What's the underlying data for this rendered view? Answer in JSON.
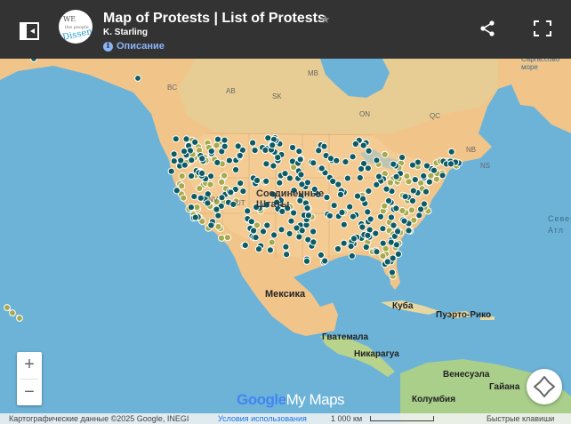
{
  "header": {
    "title": "Map of Protests | List of Protests",
    "author": "K. Starling",
    "description_link": "Описание",
    "logo_text_top": "WE",
    "logo_text_mid": "the people",
    "logo_text_bottom": "Dissent"
  },
  "map_labels": {
    "bc": "BC",
    "ab": "AB",
    "mb": "MB",
    "sk": "SK",
    "on": "ON",
    "qc": "QC",
    "nb": "NB",
    "ns": "NS",
    "nv": "NV",
    "ut": "UT",
    "us": "Соединённые Штаты Америки",
    "mexico": "Мексика",
    "cuba": "Куба",
    "puerto_rico": "Пуэрто-Рико",
    "guatemala": "Гватемала",
    "nicaragua": "Никарагуа",
    "venezuela": "Венесуэла",
    "colombia": "Колумбия",
    "guyana": "Гайана",
    "sargasso": "Саргассово море",
    "north_atlantic": "Север Атл"
  },
  "controls": {
    "zoom_in": "+",
    "zoom_out": "−"
  },
  "branding": {
    "google": "Google",
    "mymaps": "My Maps"
  },
  "footer": {
    "attribution": "Картографические данные ©2025 Google, INEGI",
    "terms": "Условия использования",
    "scale": "1 000 км",
    "shortcuts": "Быстрые клавиши"
  },
  "colors": {
    "marker_teal": "#0d5c63",
    "marker_olive": "#a7a94b",
    "ocean": "#6db3d8",
    "land": "#f1c58a",
    "header_bg": "#333333"
  },
  "markers": {
    "olive_count": 110,
    "teal_count": 300
  }
}
